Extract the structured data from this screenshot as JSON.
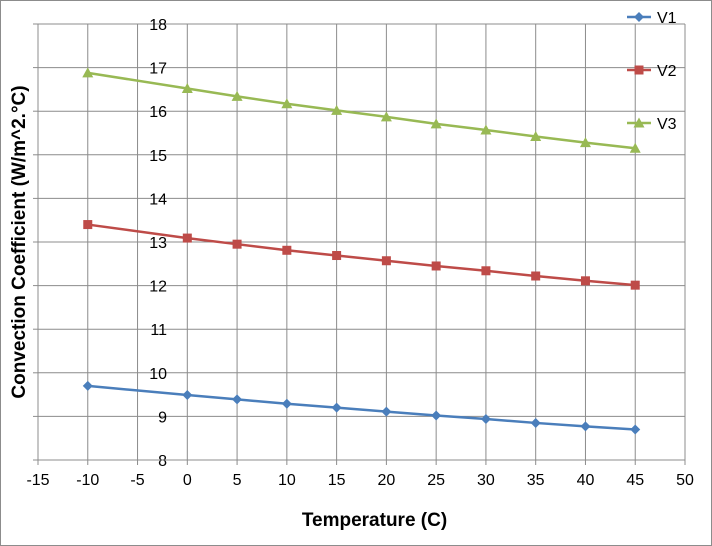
{
  "chart_data": {
    "type": "line",
    "title": "",
    "xlabel": "Temperature (C)",
    "ylabel": "Convection Coefficient (W/m^2.°C)",
    "xlim": [
      -15,
      50
    ],
    "ylim": [
      8,
      18
    ],
    "xticks": [
      -15,
      -10,
      -5,
      0,
      5,
      10,
      15,
      20,
      25,
      30,
      35,
      40,
      45,
      50
    ],
    "yticks": [
      8,
      9,
      10,
      11,
      12,
      13,
      14,
      15,
      16,
      17,
      18
    ],
    "grid": true,
    "legend_position": "right",
    "x": [
      -10,
      0,
      5,
      10,
      15,
      20,
      25,
      30,
      35,
      40,
      45
    ],
    "series": [
      {
        "name": "V1",
        "color": "#4a7ebb",
        "marker": "diamond",
        "values": [
          9.7,
          9.49,
          9.39,
          9.29,
          9.2,
          9.11,
          9.02,
          8.94,
          8.85,
          8.77,
          8.7
        ]
      },
      {
        "name": "V2",
        "color": "#be4b48",
        "marker": "square",
        "values": [
          13.4,
          13.09,
          12.95,
          12.81,
          12.69,
          12.57,
          12.45,
          12.34,
          12.22,
          12.11,
          12.01
        ]
      },
      {
        "name": "V3",
        "color": "#98b954",
        "marker": "triangle",
        "values": [
          16.88,
          16.52,
          16.34,
          16.17,
          16.02,
          15.87,
          15.71,
          15.57,
          15.42,
          15.28,
          15.15
        ]
      }
    ]
  }
}
